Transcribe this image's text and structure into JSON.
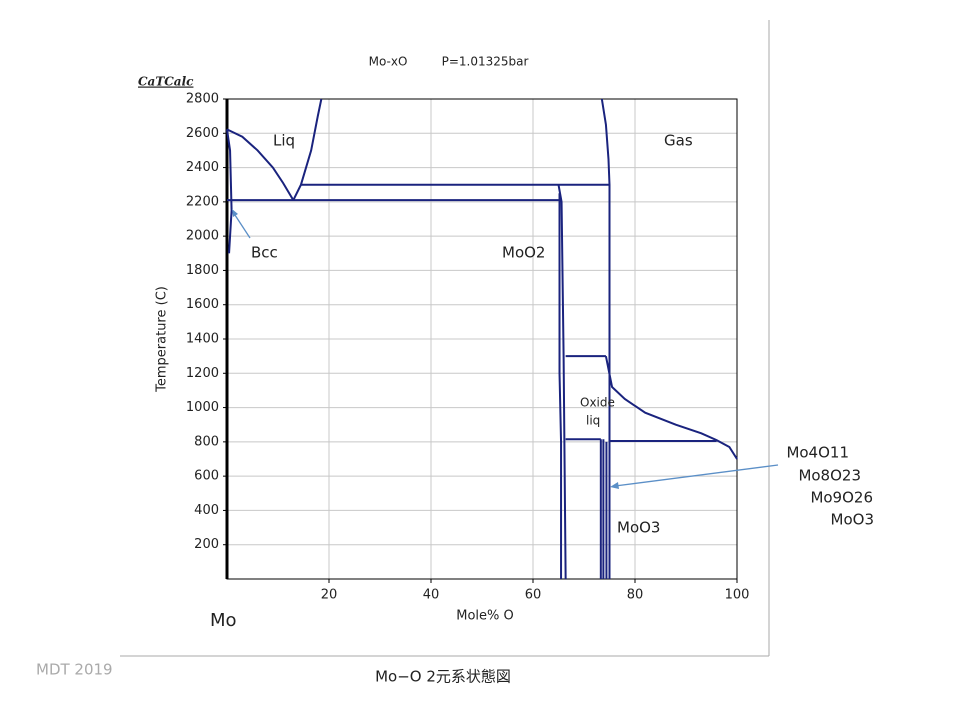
{
  "chart_data": {
    "type": "line",
    "brand": "CaTCalc",
    "title": "Mo-xO",
    "subtitle": "P=1.01325bar",
    "xlabel": "Mole% O",
    "ylabel": "Temperature (C)",
    "origin_label": "Mo",
    "xlim": [
      0,
      100
    ],
    "ylim": [
      0,
      2800
    ],
    "xticks": [
      20,
      40,
      60,
      80,
      100
    ],
    "yticks": [
      200,
      400,
      600,
      800,
      1000,
      1200,
      1400,
      1600,
      1800,
      2000,
      2200,
      2400,
      2600,
      2800
    ],
    "grid": true,
    "series": [
      {
        "color": "#1a237e",
        "x": [
          0,
          3,
          6,
          9,
          11,
          13
        ],
        "values": [
          2623,
          2580,
          2500,
          2400,
          2310,
          2210
        ]
      },
      {
        "color": "#1a237e",
        "x": [
          13,
          14.5,
          16.5,
          17.8,
          18.5
        ],
        "values": [
          2210,
          2300,
          2500,
          2700,
          2800
        ]
      },
      {
        "color": "#1a237e",
        "x": [
          0,
          65
        ],
        "values": [
          2210,
          2210
        ]
      },
      {
        "color": "#1a237e",
        "x": [
          14.5,
          75
        ],
        "values": [
          2300,
          2300
        ]
      },
      {
        "color": "#1a237e",
        "x": [
          73.5,
          74.3,
          74.8,
          75,
          75,
          75
        ],
        "values": [
          2800,
          2650,
          2450,
          2300,
          800,
          0
        ]
      },
      {
        "color": "#1a237e",
        "x": [
          65,
          65.6,
          66,
          66.4
        ],
        "values": [
          2300,
          2200,
          1300,
          0
        ]
      },
      {
        "color": "#1a237e",
        "x": [
          65.2,
          65.2,
          65.5,
          65.5
        ],
        "values": [
          2250,
          1200,
          800,
          0
        ]
      },
      {
        "color": "#1a237e",
        "x": [
          66.4,
          74.3
        ],
        "values": [
          1300,
          1300
        ]
      },
      {
        "color": "#1a237e",
        "x": [
          66.4,
          73.3
        ],
        "values": [
          815,
          815
        ]
      },
      {
        "color": "#1a237e",
        "x": [
          74.3,
          75.5,
          78,
          82,
          88,
          93,
          96,
          98.5,
          100
        ],
        "values": [
          1300,
          1120,
          1050,
          970,
          900,
          850,
          810,
          770,
          700
        ]
      },
      {
        "color": "#1a237e",
        "x": [
          75,
          96
        ],
        "values": [
          805,
          805
        ]
      },
      {
        "color": "#1a237e",
        "x": [
          73.3,
          73.3
        ],
        "values": [
          815,
          0
        ]
      },
      {
        "color": "#1a237e",
        "x": [
          73.8,
          73.8
        ],
        "values": [
          815,
          0
        ]
      },
      {
        "color": "#1a237e",
        "x": [
          74.4,
          74.4
        ],
        "values": [
          800,
          0
        ]
      },
      {
        "color": "#1a237e",
        "x": [
          0.4,
          0.9,
          0.6,
          0
        ],
        "values": [
          1900,
          2150,
          2500,
          2623
        ]
      }
    ],
    "annotations": [
      "Liq",
      "Gas",
      "Bcc",
      "MoO2",
      "Oxide",
      "liq",
      "MoO3",
      "Mo4O11",
      "Mo8O23",
      "Mo9O26",
      "MoO3"
    ]
  },
  "footer": {
    "credit": "MDT  2019",
    "caption": "Mo−O  2元系状態図"
  }
}
